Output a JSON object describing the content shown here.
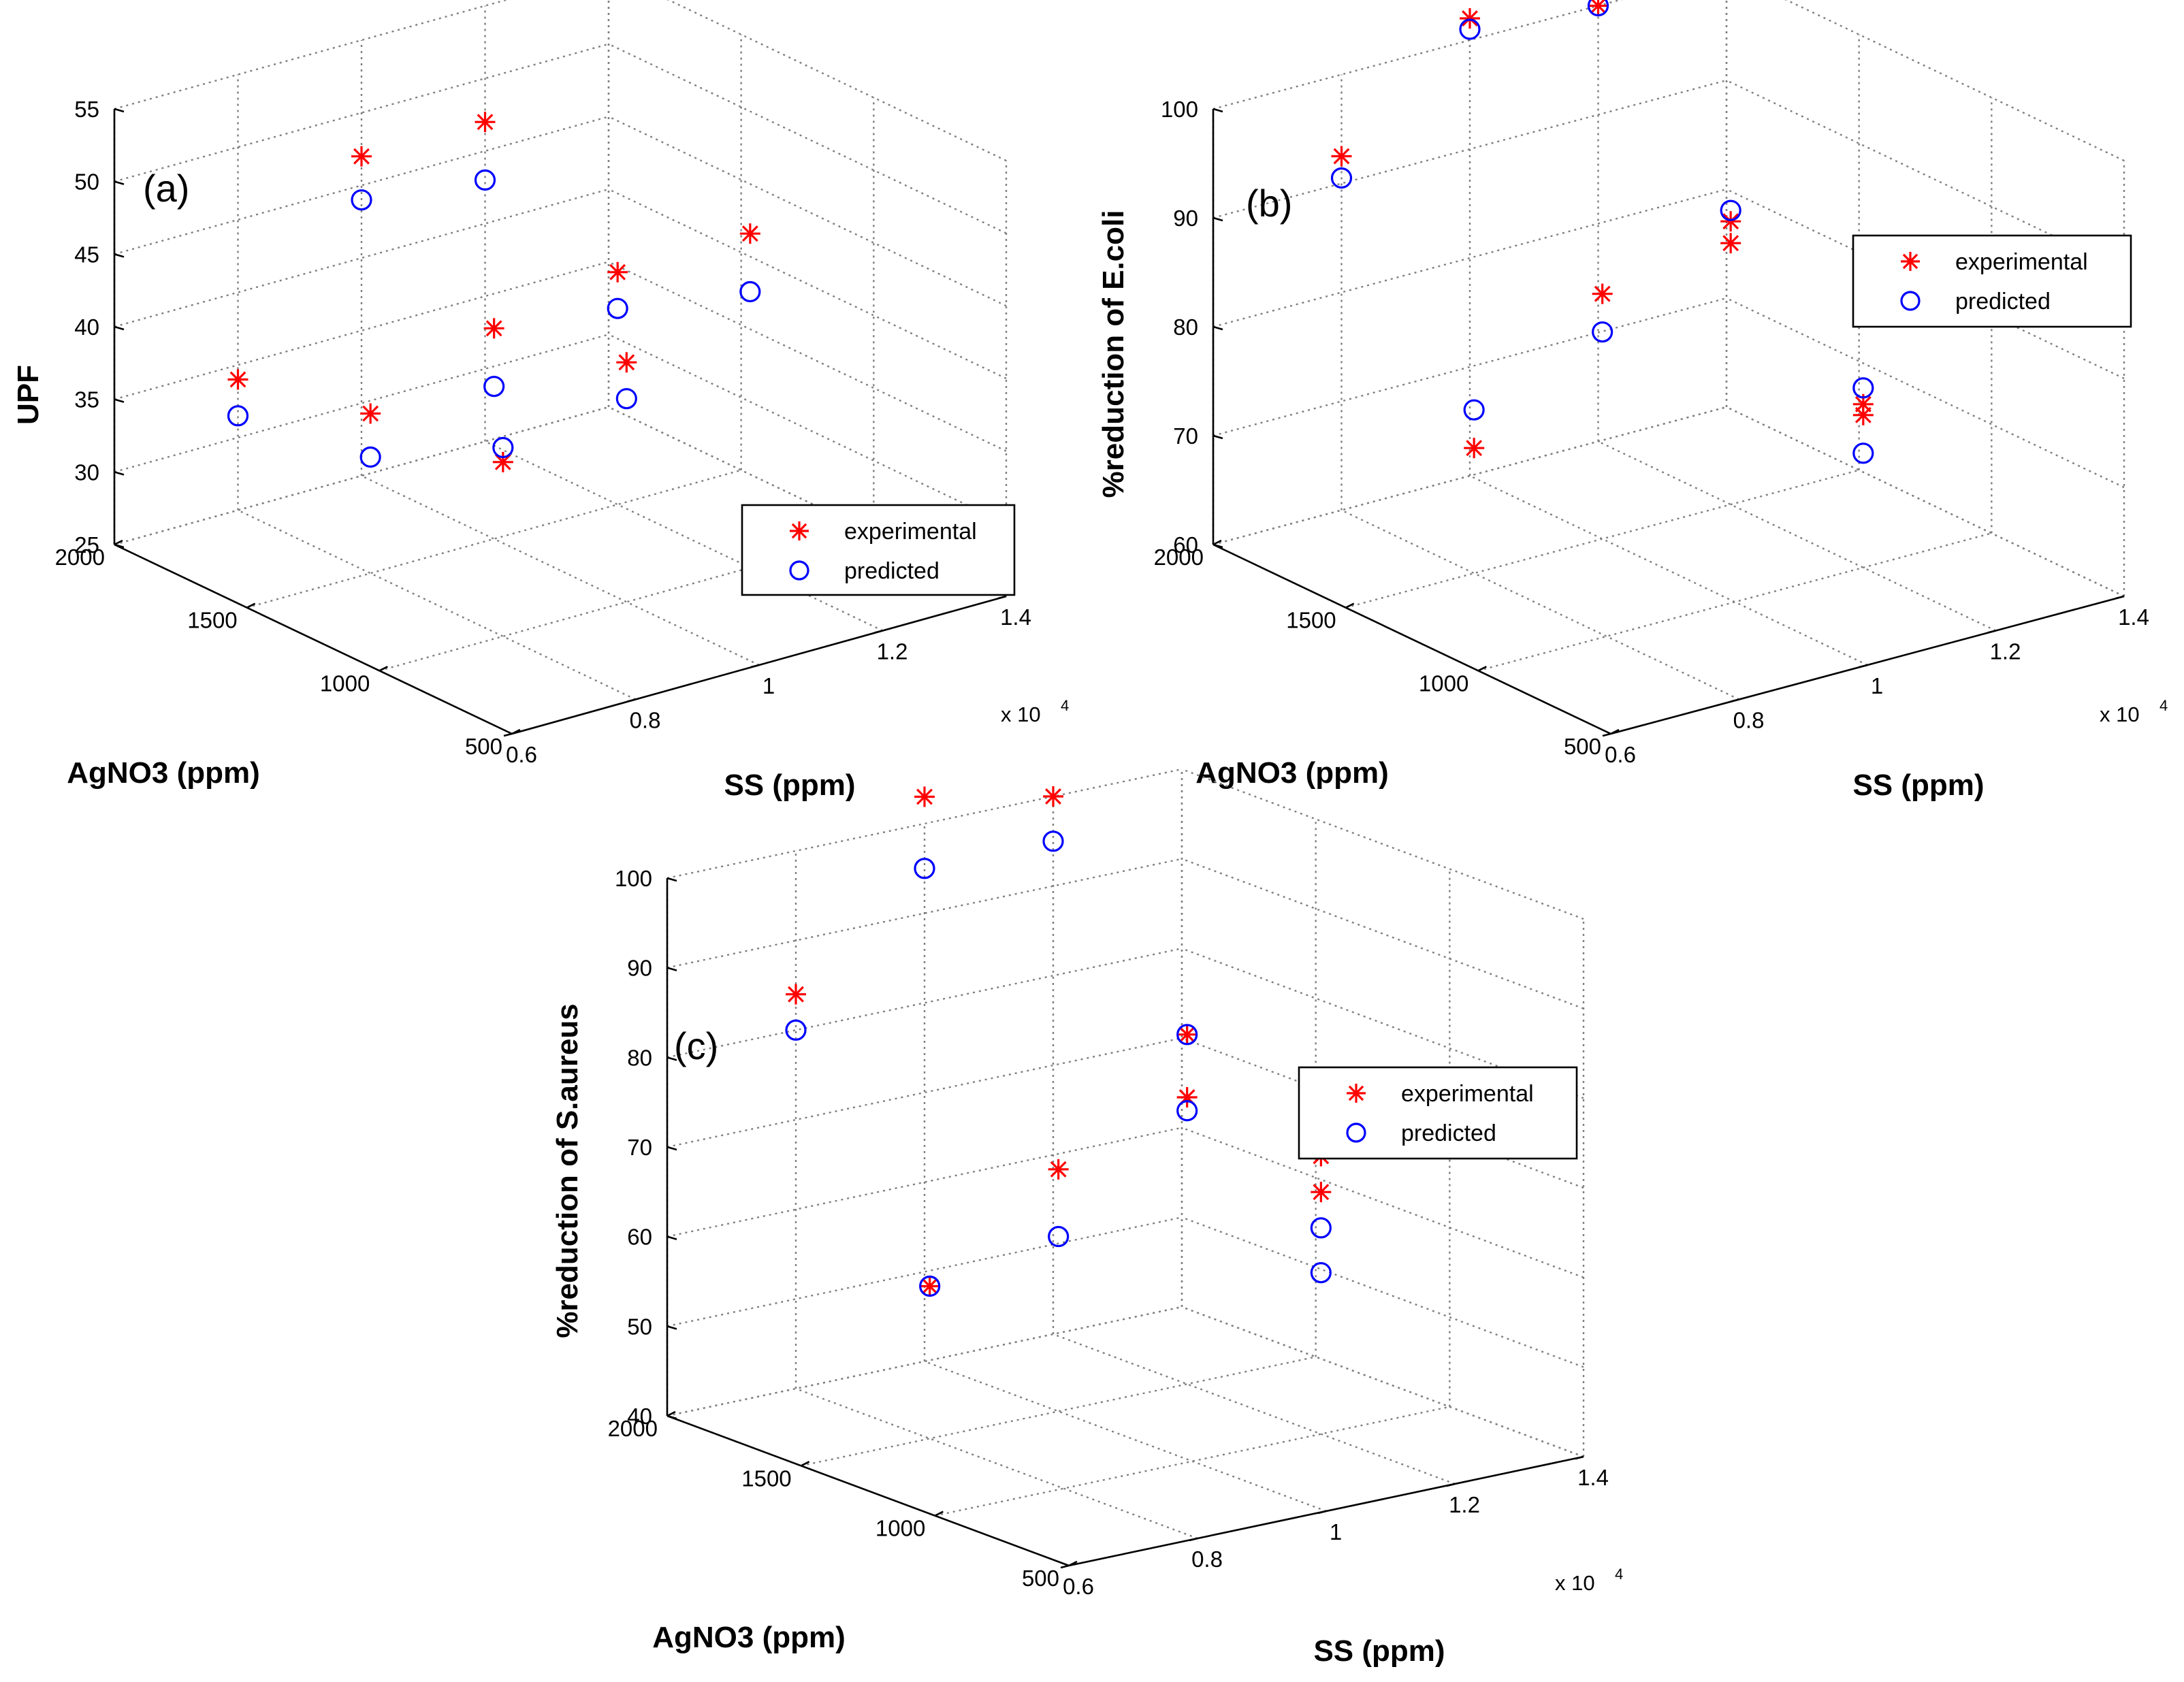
{
  "figure": {
    "legend_experimental": "experimental",
    "legend_predicted": "predicted",
    "colors": {
      "experimental": "#ff0000",
      "predicted": "#0000ff",
      "grid": "#7f7f7f",
      "axis": "#000000"
    }
  },
  "chart_data": [
    {
      "type": "scatter3d",
      "panel_label": "(a)",
      "xlabel": "SS (ppm)",
      "ylabel": "AgNO3 (ppm)",
      "zlabel": "UPF",
      "x_multiplier_label": "x 10",
      "x_multiplier_exponent": "4",
      "xlim": [
        0.6,
        1.4
      ],
      "ylim": [
        500,
        2000
      ],
      "zlim": [
        25,
        55
      ],
      "x_ticks": [
        "0.6",
        "0.8",
        "1",
        "1.2",
        "1.4"
      ],
      "y_ticks": [
        "500",
        "1000",
        "1500",
        "2000"
      ],
      "z_ticks": [
        "25",
        "30",
        "35",
        "40",
        "45",
        "50",
        "55"
      ],
      "legend": [
        "experimental",
        "predicted"
      ],
      "series": [
        {
          "name": "experimental",
          "marker": "star",
          "points": [
            [
              0.8,
              1000,
              37
            ],
            [
              0.8,
              1500,
              36
            ],
            [
              0.8,
              2000,
              34
            ],
            [
              1,
              1000,
              41.5
            ],
            [
              1,
              1500,
              39.5
            ],
            [
              1,
              2000,
              47
            ],
            [
              1.2,
              1000,
              48
            ],
            [
              1.2,
              1500,
              41
            ],
            [
              1.2,
              2000,
              47
            ]
          ]
        },
        {
          "name": "predicted",
          "marker": "circle",
          "points": [
            [
              0.8,
              1000,
              38
            ],
            [
              0.8,
              1500,
              33
            ],
            [
              0.8,
              2000,
              31.5
            ],
            [
              1,
              1000,
              39
            ],
            [
              1,
              1500,
              35.5
            ],
            [
              1,
              2000,
              44
            ],
            [
              1.2,
              1000,
              44
            ],
            [
              1.2,
              1500,
              38.5
            ],
            [
              1.2,
              2000,
              43
            ]
          ]
        }
      ]
    },
    {
      "type": "scatter3d",
      "panel_label": "(b)",
      "xlabel": "SS (ppm)",
      "ylabel": "AgNO3 (ppm)",
      "zlabel": "%reduction of E.coli",
      "x_multiplier_label": "x 10",
      "x_multiplier_exponent": "4",
      "xlim": [
        0.6,
        1.4
      ],
      "ylim": [
        500,
        2000
      ],
      "zlim": [
        60,
        100
      ],
      "x_ticks": [
        "0.6",
        "0.8",
        "1",
        "1.2",
        "1.4"
      ],
      "y_ticks": [
        "500",
        "1000",
        "1500",
        "2000"
      ],
      "z_ticks": [
        "60",
        "70",
        "80",
        "90",
        "100"
      ],
      "legend": [
        "experimental",
        "predicted"
      ],
      "series": [
        {
          "name": "experimental",
          "marker": "star",
          "points": [
            [
              0.8,
              2000,
              92.5
            ],
            [
              1,
              2000,
              102
            ],
            [
              1.2,
              2000,
              100
            ],
            [
              0.8,
              1500,
              71.5
            ],
            [
              1,
              1500,
              82.5
            ],
            [
              1.2,
              1500,
              86
            ],
            [
              1.2,
              1500,
              84
            ],
            [
              1.2,
              1000,
              75
            ],
            [
              1.2,
              1000,
              74
            ]
          ]
        },
        {
          "name": "predicted",
          "marker": "circle",
          "points": [
            [
              0.8,
              2000,
              90.5
            ],
            [
              1,
              2000,
              101
            ],
            [
              1.2,
              2000,
              100
            ],
            [
              0.8,
              1500,
              75
            ],
            [
              1,
              1500,
              79
            ],
            [
              1.2,
              1500,
              87
            ],
            [
              1.2,
              1000,
              76.5
            ],
            [
              1.2,
              1000,
              70.5
            ]
          ]
        }
      ]
    },
    {
      "type": "scatter3d",
      "panel_label": "(c)",
      "xlabel": "SS (ppm)",
      "ylabel": "AgNO3 (ppm)",
      "zlabel": "%reduction of S.aureus",
      "x_multiplier_label": "x 10",
      "x_multiplier_exponent": "4",
      "xlim": [
        0.6,
        1.4
      ],
      "ylim": [
        500,
        2000
      ],
      "zlim": [
        40,
        100
      ],
      "x_ticks": [
        "0.6",
        "0.8",
        "1",
        "1.2",
        "1.4"
      ],
      "y_ticks": [
        "500",
        "1000",
        "1500",
        "2000"
      ],
      "z_ticks": [
        "40",
        "50",
        "60",
        "70",
        "80",
        "90",
        "100"
      ],
      "legend": [
        "experimental",
        "predicted"
      ],
      "series": [
        {
          "name": "experimental",
          "marker": "star",
          "points": [
            [
              0.8,
              2000,
              84
            ],
            [
              1,
              2000,
              103
            ],
            [
              1.2,
              2000,
              100
            ],
            [
              0.8,
              1500,
              57
            ],
            [
              1,
              1500,
              67
            ],
            [
              1.2,
              1500,
              79
            ],
            [
              1.2,
              1500,
              72
            ],
            [
              1.2,
              1000,
              71
            ],
            [
              1.2,
              1000,
              67
            ]
          ]
        },
        {
          "name": "predicted",
          "marker": "circle",
          "points": [
            [
              0.8,
              2000,
              80
            ],
            [
              1,
              2000,
              95
            ],
            [
              1.2,
              2000,
              95
            ],
            [
              0.8,
              1500,
              57
            ],
            [
              1,
              1500,
              59.5
            ],
            [
              1.2,
              1500,
              79
            ],
            [
              1.2,
              1500,
              70.5
            ],
            [
              1.2,
              1000,
              63
            ],
            [
              1.2,
              1000,
              58
            ]
          ]
        }
      ]
    }
  ]
}
